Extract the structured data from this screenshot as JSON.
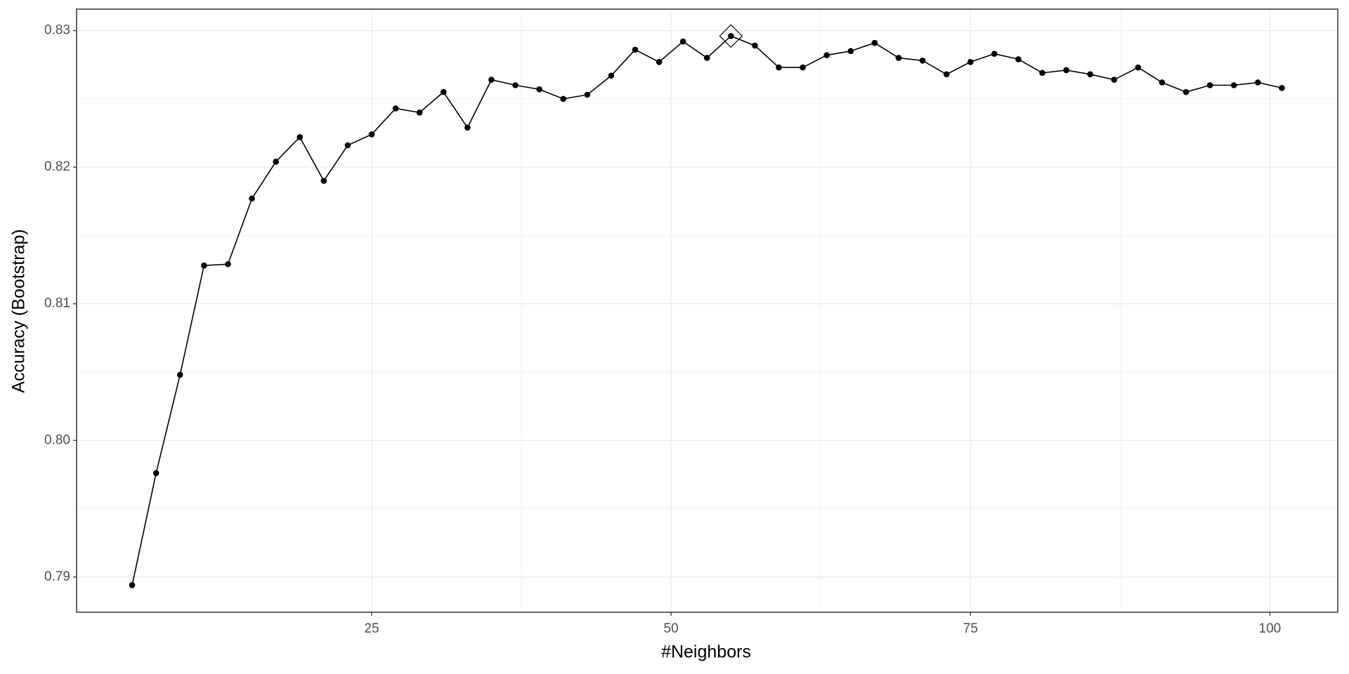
{
  "chart_data": {
    "type": "line",
    "x_label": "#Neighbors",
    "y_label": "Accuracy (Bootstrap)",
    "x": [
      5,
      7,
      9,
      11,
      13,
      15,
      17,
      19,
      21,
      23,
      25,
      27,
      29,
      31,
      33,
      35,
      37,
      39,
      41,
      43,
      45,
      47,
      49,
      51,
      53,
      55,
      57,
      59,
      61,
      63,
      65,
      67,
      69,
      71,
      73,
      75,
      77,
      79,
      81,
      83,
      85,
      87,
      89,
      91,
      93,
      95,
      97,
      99,
      101
    ],
    "values": [
      0.7894,
      0.7976,
      0.8048,
      0.8128,
      0.8129,
      0.8177,
      0.8204,
      0.8222,
      0.819,
      0.8216,
      0.8224,
      0.8243,
      0.824,
      0.8255,
      0.8229,
      0.8264,
      0.826,
      0.8257,
      0.825,
      0.8253,
      0.8267,
      0.8286,
      0.8277,
      0.8292,
      0.828,
      0.8296,
      0.8289,
      0.8273,
      0.8273,
      0.8282,
      0.8285,
      0.8291,
      0.828,
      0.8278,
      0.8268,
      0.8277,
      0.8283,
      0.8279,
      0.8269,
      0.8271,
      0.8268,
      0.8264,
      0.8273,
      0.8262,
      0.8255,
      0.826,
      0.826,
      0.8262,
      0.8258
    ],
    "color": "#000000",
    "highlight_x": 55,
    "xlim": [
      0.36,
      105.67
    ],
    "xticks": [
      25,
      50,
      75,
      100
    ],
    "ylim": [
      0.78742,
      0.83157
    ],
    "yticks": [
      0.79,
      {
        "value": 0.8,
        "label": "0.80"
      },
      0.81,
      0.82,
      0.83
    ],
    "grid": true
  }
}
